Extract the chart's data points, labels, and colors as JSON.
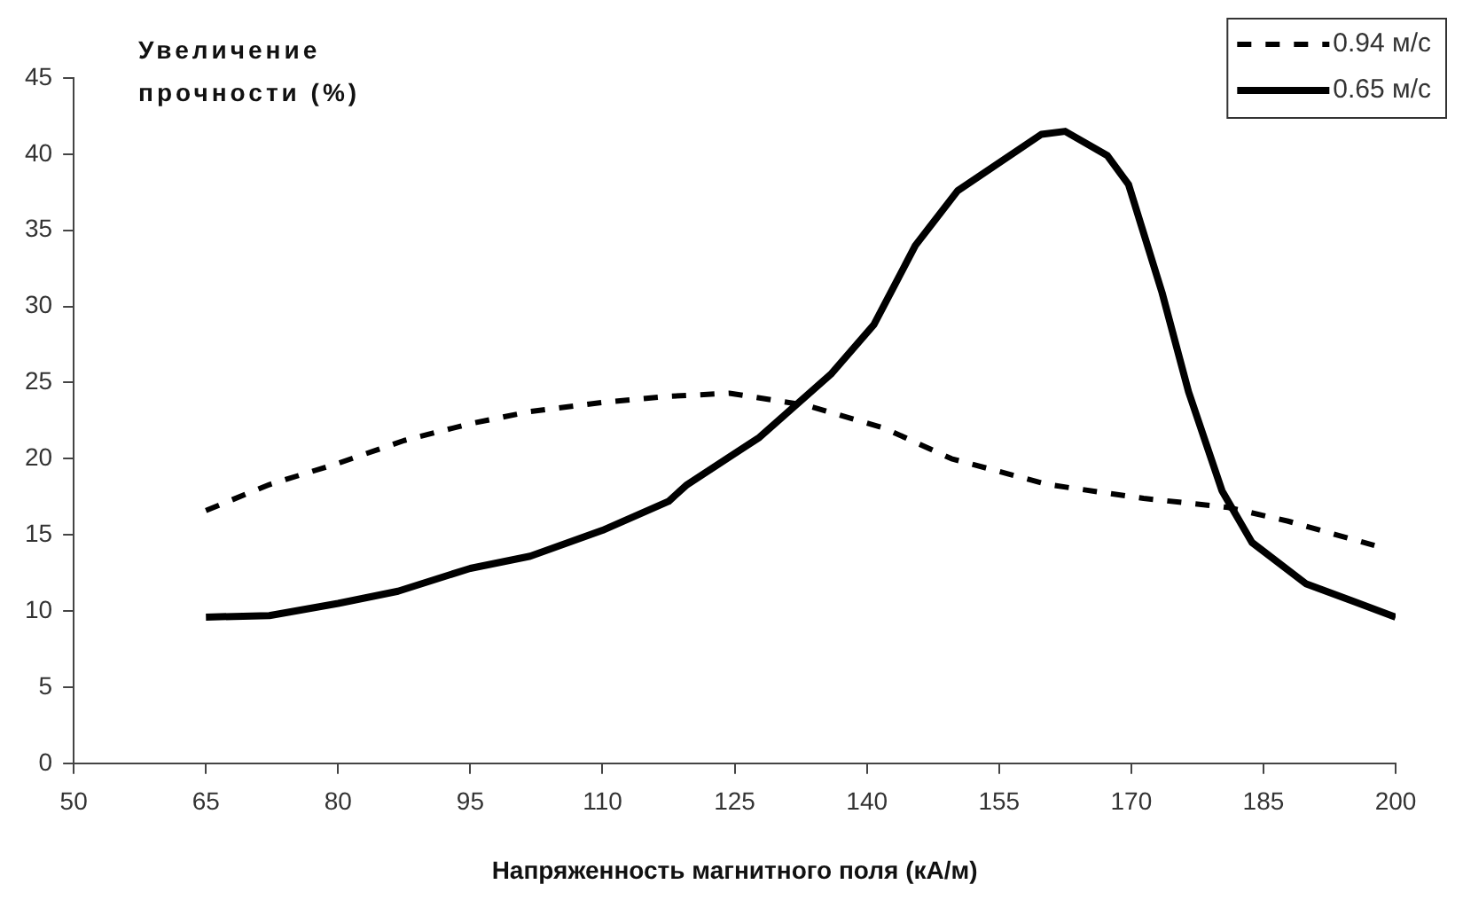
{
  "chart_data": {
    "type": "line",
    "xlabel": "Напряженность магнитного поля (кА/м)",
    "ylabel": "Увеличение прочности (%)",
    "xlim": [
      50,
      200
    ],
    "xticks": [
      50,
      65,
      80,
      95,
      110,
      125,
      140,
      155,
      170,
      185,
      200
    ],
    "ylim": [
      0,
      45
    ],
    "yticks": [
      0,
      5,
      10,
      15,
      20,
      25,
      30,
      35,
      40,
      45
    ],
    "grid": false,
    "legend": "top right",
    "marker": "none",
    "series": [
      {
        "name": "0.94 м/с",
        "color": "#000000",
        "line_style": "dashed",
        "x": [
          65,
          72.2,
          80,
          87.5,
          95,
          101.8,
          110,
          117.5,
          124.4,
          133.2,
          142,
          149.6,
          160.6,
          171.4,
          181,
          187.8,
          197.6
        ],
        "values": [
          16.6,
          18.3,
          19.7,
          21.2,
          22.3,
          23.1,
          23.7,
          24.1,
          24.3,
          23.5,
          22,
          20,
          18.3,
          17.4,
          16.8,
          15.9,
          14.3
        ]
      },
      {
        "name": "0.65 м/с",
        "color": "#000000",
        "line_style": "solid",
        "x": [
          65,
          72.2,
          80,
          86.8,
          95,
          101.8,
          110,
          117.5,
          119.6,
          127.8,
          136,
          140.8,
          145.5,
          150.3,
          159.8,
          162.5,
          167.3,
          169.7,
          173.5,
          176.5,
          180.3,
          183.7,
          189.8,
          200
        ],
        "values": [
          9.6,
          9.7,
          10.5,
          11.3,
          12.8,
          13.6,
          15.3,
          17.2,
          18.3,
          21.4,
          25.6,
          28.8,
          34,
          37.6,
          41.3,
          41.5,
          39.9,
          38,
          30.9,
          24.4,
          17.9,
          14.5,
          11.8,
          9.6
        ]
      }
    ]
  }
}
